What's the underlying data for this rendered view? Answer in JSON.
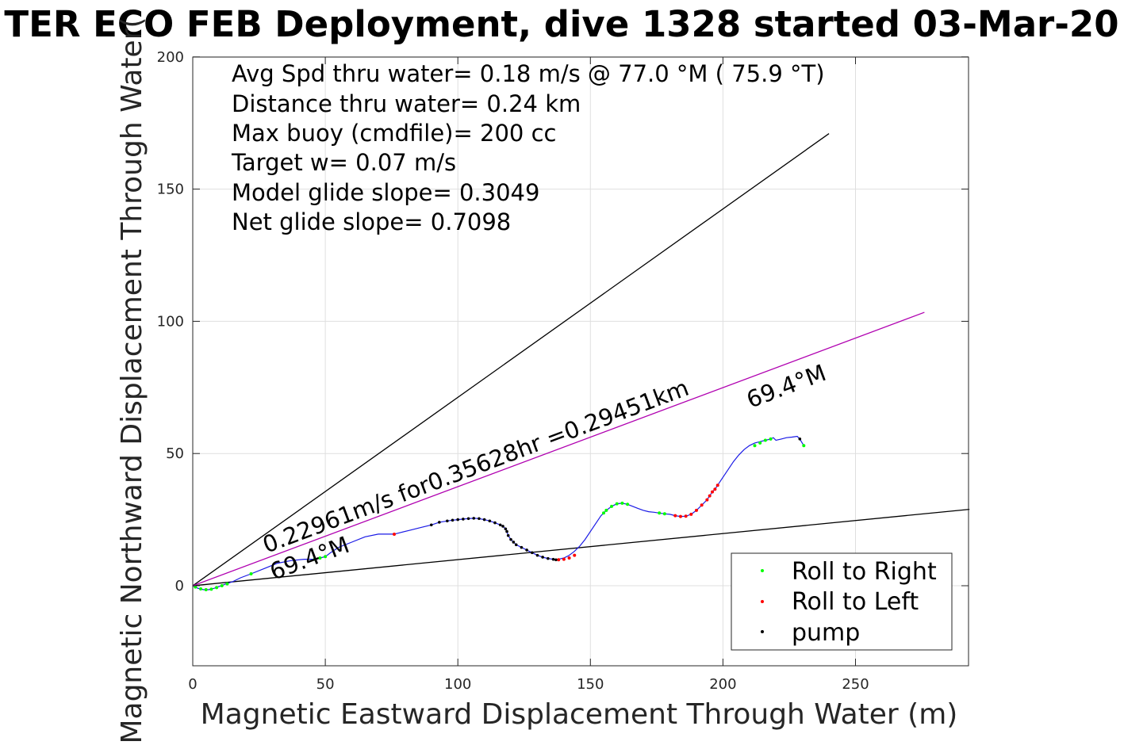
{
  "chart_data": {
    "type": "scatter",
    "title": "TER ECO FEB Deployment, dive 1328 started 03-Mar-20",
    "xlabel": "Magnetic Eastward Displacement Through Water (m)",
    "ylabel": "Magnetic Northward Displacement Through Water(",
    "xlim": [
      0,
      293
    ],
    "ylim": [
      -30,
      200
    ],
    "x_ticks": [
      0,
      50,
      100,
      150,
      200,
      250
    ],
    "y_ticks": [
      0,
      50,
      100,
      150,
      200
    ],
    "grid": true,
    "legend_position": "bottom-right",
    "info_text": [
      "Avg Spd thru water=  0.18 m/s @  77.0 °M ( 75.9 °T)",
      "Distance thru water=  0.24 km",
      "Max buoy (cmdfile)= 200 cc",
      "Target w= 0.07 m/s",
      "Model glide slope= 0.3049",
      "Net glide slope= 0.7098"
    ],
    "annotations": {
      "speed_label": "0.22961m/s for0.35628hr =0.29451km",
      "heading_label_left": "69.4°M",
      "heading_label_right": "69.4°M"
    },
    "reference_lines": [
      {
        "name": "cone-upper",
        "x": [
          0,
          240
        ],
        "y": [
          0,
          171
        ],
        "color": "#000000"
      },
      {
        "name": "cone-lower",
        "x": [
          0,
          293
        ],
        "y": [
          0,
          28.9
        ],
        "color": "#000000"
      },
      {
        "name": "heading",
        "x": [
          0,
          276
        ],
        "y": [
          0,
          103.4
        ],
        "color": "#b000b0"
      }
    ],
    "track": {
      "color": "#1a1ae6",
      "x": [
        0,
        2,
        4,
        6,
        8,
        10,
        12,
        15,
        18,
        22,
        27,
        32,
        37,
        42,
        46,
        48,
        50,
        52,
        55,
        60,
        65,
        70,
        76,
        82,
        86,
        90,
        93,
        96,
        98,
        100,
        102,
        104,
        106,
        108,
        110,
        112,
        114,
        116,
        117,
        118,
        118.5,
        119,
        120,
        121,
        122,
        124,
        126,
        128,
        130,
        132,
        134,
        136,
        137,
        138,
        140,
        142,
        144,
        146,
        148,
        150,
        152,
        154,
        155,
        156,
        158,
        160,
        162,
        164,
        166,
        168,
        170,
        172,
        174,
        176,
        178,
        180,
        182,
        184,
        186,
        188,
        190,
        192,
        194,
        195,
        196,
        197,
        198,
        200,
        202,
        204,
        206,
        208,
        210,
        212,
        214,
        216,
        218,
        219,
        220,
        222,
        224,
        226,
        228,
        229,
        230.5
      ],
      "y": [
        0,
        -1,
        -1.5,
        -1.5,
        -1,
        -0.3,
        0.5,
        1.5,
        3,
        4.5,
        6.5,
        8.5,
        9.5,
        10,
        10,
        10.5,
        11,
        12.5,
        14.5,
        16.5,
        18.5,
        19.5,
        19.5,
        21,
        22,
        23,
        24,
        24.5,
        24.8,
        25,
        25.2,
        25.4,
        25.5,
        25.4,
        25,
        24.5,
        23.8,
        23,
        22.5,
        21.5,
        20.5,
        19,
        17.5,
        16.5,
        15.5,
        14.5,
        13.5,
        12.5,
        11.5,
        10.8,
        10.3,
        10,
        9.8,
        10,
        10.5,
        11.5,
        13,
        15,
        17.5,
        20.5,
        23.5,
        26.5,
        27.5,
        28.5,
        30,
        31,
        31.2,
        30.8,
        30,
        29.2,
        28.5,
        28,
        27.8,
        27.5,
        27.2,
        27,
        26.5,
        26.2,
        26.3,
        27,
        28.5,
        30.5,
        32.5,
        34,
        35.5,
        36.5,
        38,
        41,
        44,
        47,
        49.5,
        51.5,
        53,
        54,
        54.5,
        55,
        55.5,
        56,
        55,
        55.5,
        56,
        56.2,
        56.5,
        55.5,
        53
      ],
      "green_x": [
        1,
        3,
        5,
        7,
        9,
        11,
        13,
        22,
        46,
        48,
        50,
        155,
        156,
        158,
        160,
        162,
        164,
        176,
        178,
        212,
        214,
        216,
        218,
        230.5
      ],
      "green_y": [
        -0.5,
        -1.2,
        -1.5,
        -1.3,
        -0.7,
        0,
        0.7,
        4.5,
        10,
        10.5,
        11,
        27.5,
        28.5,
        30,
        31,
        31.2,
        30.8,
        27.5,
        27.2,
        53,
        54,
        55,
        55.5,
        53
      ],
      "red_x": [
        76,
        138,
        140,
        142,
        144,
        182,
        184,
        186,
        188,
        190,
        192,
        194,
        195,
        196,
        197,
        198
      ],
      "red_y": [
        19.5,
        9.8,
        10,
        10.5,
        11.5,
        26.5,
        26.2,
        26.3,
        27,
        28.5,
        30.5,
        32.5,
        34,
        35.5,
        36.5,
        38
      ],
      "pump_x": [
        90,
        93,
        96,
        98,
        100,
        102,
        104,
        106,
        108,
        110,
        112,
        114,
        116,
        117,
        118,
        118.5,
        119,
        120,
        121,
        122,
        124,
        126,
        128,
        130,
        132,
        134,
        136,
        137,
        229
      ],
      "pump_y": [
        23,
        24,
        24.5,
        24.8,
        25,
        25.2,
        25.4,
        25.5,
        25.4,
        25,
        24.5,
        23.8,
        23,
        22.5,
        21.5,
        20.5,
        19,
        17.5,
        16.5,
        15.5,
        14.5,
        13.5,
        12.5,
        11.5,
        10.8,
        10.3,
        10,
        9.8,
        55.5
      ]
    },
    "legend": [
      {
        "label": "Roll to Right",
        "color": "#00ff00"
      },
      {
        "label": "Roll to Left",
        "color": "#ff0000"
      },
      {
        "label": "pump",
        "color": "#000000"
      }
    ]
  }
}
